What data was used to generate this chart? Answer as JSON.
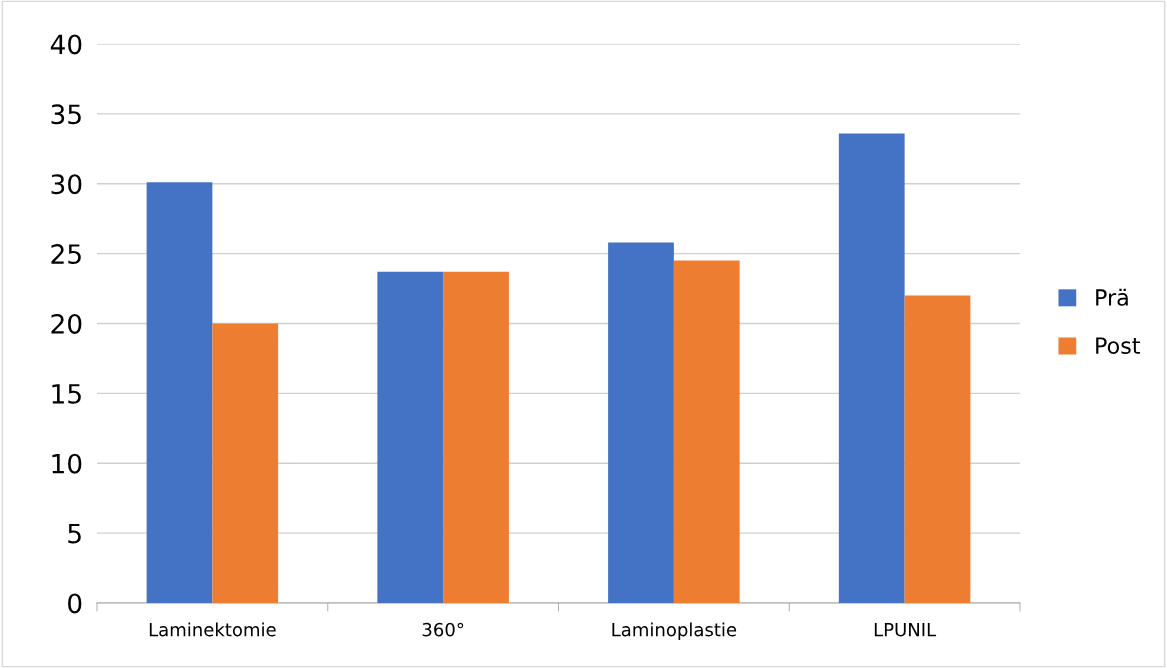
{
  "chart_data": {
    "type": "bar",
    "categories": [
      "Laminektomie",
      "360°",
      "Laminoplastie",
      "LPUNIL"
    ],
    "series": [
      {
        "name": "Prä",
        "color": "#4472c4",
        "values": [
          30.1,
          23.7,
          25.8,
          33.6
        ]
      },
      {
        "name": "Post",
        "color": "#ed7d31",
        "values": [
          20.0,
          23.7,
          24.5,
          22.0
        ]
      }
    ],
    "ylim": [
      0,
      40
    ],
    "yticks": [
      0,
      5,
      10,
      15,
      20,
      25,
      30,
      35,
      40
    ],
    "grid": "y",
    "legend": "right"
  }
}
